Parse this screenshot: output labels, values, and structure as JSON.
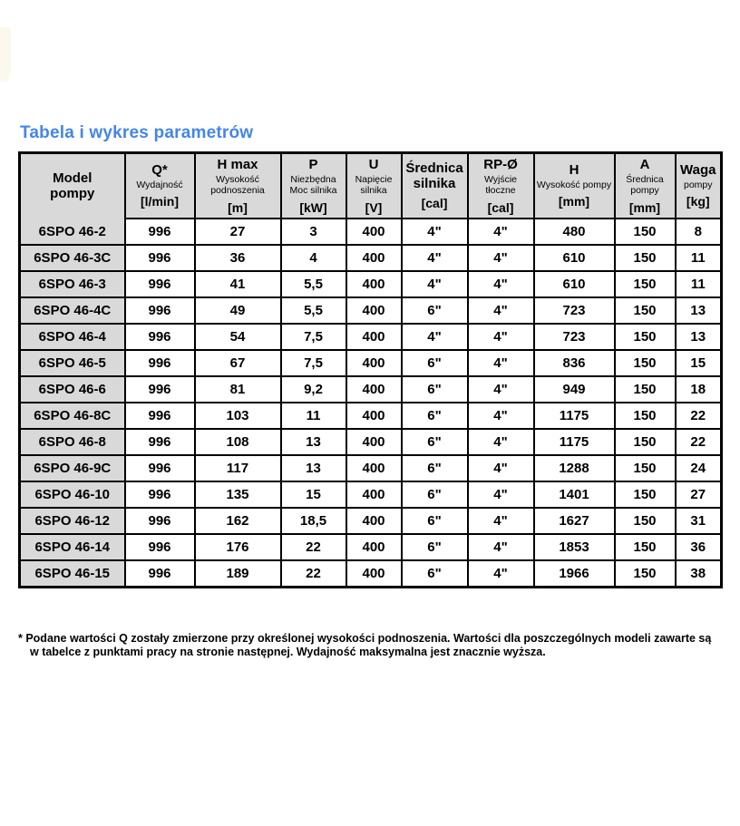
{
  "page": {
    "title": "Tabela i wykres parametrów"
  },
  "colors": {
    "title_accent": "#4486e9",
    "header_bg": "#d9d9d9",
    "border": "#000000"
  },
  "table": {
    "columns": [
      {
        "main": "Model\npompy",
        "sub": "",
        "unit": ""
      },
      {
        "main": "Q*",
        "sub": "Wydajność",
        "unit": "[l/min]"
      },
      {
        "main": "H max",
        "sub": "Wysokość podnoszenia",
        "unit": "[m]"
      },
      {
        "main": "P",
        "sub": "Niezbędna Moc silnika",
        "unit": "[kW]"
      },
      {
        "main": "U",
        "sub": "Napięcie silnika",
        "unit": "[V]"
      },
      {
        "main": "Średnica silnika",
        "sub": "",
        "unit": "[cal]"
      },
      {
        "main": "RP-Ø",
        "sub": "Wyjście tłoczne",
        "unit": "[cal]"
      },
      {
        "main": "H",
        "sub": "Wysokość pompy",
        "unit": "[mm]"
      },
      {
        "main": "A",
        "sub": "Średnica pompy",
        "unit": "[mm]"
      },
      {
        "main": "Waga",
        "sub": "pompy",
        "unit": "[kg]"
      }
    ],
    "rows": [
      [
        "6SPO 46-2",
        "996",
        "27",
        "3",
        "400",
        "4\"",
        "4\"",
        "480",
        "150",
        "8"
      ],
      [
        "6SPO 46-3C",
        "996",
        "36",
        "4",
        "400",
        "4\"",
        "4\"",
        "610",
        "150",
        "11"
      ],
      [
        "6SPO 46-3",
        "996",
        "41",
        "5,5",
        "400",
        "4\"",
        "4\"",
        "610",
        "150",
        "11"
      ],
      [
        "6SPO 46-4C",
        "996",
        "49",
        "5,5",
        "400",
        "6\"",
        "4\"",
        "723",
        "150",
        "13"
      ],
      [
        "6SPO 46-4",
        "996",
        "54",
        "7,5",
        "400",
        "4\"",
        "4\"",
        "723",
        "150",
        "13"
      ],
      [
        "6SPO 46-5",
        "996",
        "67",
        "7,5",
        "400",
        "6\"",
        "4\"",
        "836",
        "150",
        "15"
      ],
      [
        "6SPO 46-6",
        "996",
        "81",
        "9,2",
        "400",
        "6\"",
        "4\"",
        "949",
        "150",
        "18"
      ],
      [
        "6SPO 46-8C",
        "996",
        "103",
        "11",
        "400",
        "6\"",
        "4\"",
        "1175",
        "150",
        "22"
      ],
      [
        "6SPO 46-8",
        "996",
        "108",
        "13",
        "400",
        "6\"",
        "4\"",
        "1175",
        "150",
        "22"
      ],
      [
        "6SPO 46-9C",
        "996",
        "117",
        "13",
        "400",
        "6\"",
        "4\"",
        "1288",
        "150",
        "24"
      ],
      [
        "6SPO 46-10",
        "996",
        "135",
        "15",
        "400",
        "6\"",
        "4\"",
        "1401",
        "150",
        "27"
      ],
      [
        "6SPO 46-12",
        "996",
        "162",
        "18,5",
        "400",
        "6\"",
        "4\"",
        "1627",
        "150",
        "31"
      ],
      [
        "6SPO 46-14",
        "996",
        "176",
        "22",
        "400",
        "6\"",
        "4\"",
        "1853",
        "150",
        "36"
      ],
      [
        "6SPO 46-15",
        "996",
        "189",
        "22",
        "400",
        "6\"",
        "4\"",
        "1966",
        "150",
        "38"
      ]
    ]
  },
  "footnote": {
    "line1": "* Podane wartości Q zostały zmierzone przy określonej wysokości podnoszenia. Wartości dla poszczególnych modeli zawarte są",
    "line2": "w tabelce z punktami pracy na stronie następnej. Wydajność maksymalna jest znacznie wyższa."
  }
}
